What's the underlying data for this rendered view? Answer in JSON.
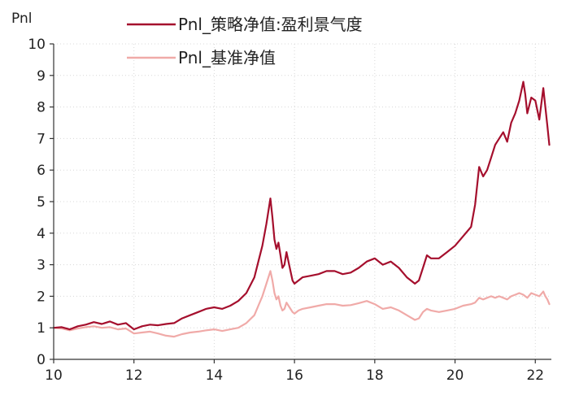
{
  "chart_data": {
    "type": "line",
    "ylabel": "Pnl",
    "xlabel": "",
    "xlim": [
      10,
      22.4
    ],
    "ylim": [
      0,
      10
    ],
    "x_ticks": [
      "10",
      "12",
      "14",
      "16",
      "18",
      "20",
      "22"
    ],
    "y_ticks": [
      "0",
      "1",
      "2",
      "3",
      "4",
      "5",
      "6",
      "7",
      "8",
      "9",
      "10"
    ],
    "grid": "dotted",
    "legend_position": "top-center",
    "series": [
      {
        "name": "Pnl_策略净值:盈利景气度",
        "color": "#a50f2d",
        "x": [
          10.0,
          10.2,
          10.4,
          10.6,
          10.8,
          11.0,
          11.2,
          11.4,
          11.6,
          11.8,
          12.0,
          12.2,
          12.4,
          12.6,
          12.8,
          13.0,
          13.2,
          13.4,
          13.6,
          13.8,
          14.0,
          14.2,
          14.4,
          14.6,
          14.8,
          15.0,
          15.1,
          15.2,
          15.3,
          15.4,
          15.45,
          15.5,
          15.55,
          15.6,
          15.65,
          15.7,
          15.75,
          15.8,
          15.85,
          15.9,
          15.95,
          16.0,
          16.1,
          16.2,
          16.4,
          16.6,
          16.8,
          17.0,
          17.2,
          17.4,
          17.6,
          17.8,
          18.0,
          18.2,
          18.4,
          18.6,
          18.8,
          19.0,
          19.1,
          19.2,
          19.3,
          19.4,
          19.6,
          19.8,
          20.0,
          20.2,
          20.4,
          20.5,
          20.6,
          20.7,
          20.8,
          20.9,
          21.0,
          21.1,
          21.2,
          21.3,
          21.4,
          21.5,
          21.6,
          21.7,
          21.75,
          21.8,
          21.9,
          22.0,
          22.1,
          22.2,
          22.25,
          22.3,
          22.35
        ],
        "values": [
          1.0,
          1.02,
          0.95,
          1.05,
          1.1,
          1.18,
          1.12,
          1.2,
          1.1,
          1.15,
          0.95,
          1.05,
          1.1,
          1.08,
          1.12,
          1.15,
          1.3,
          1.4,
          1.5,
          1.6,
          1.65,
          1.6,
          1.7,
          1.85,
          2.1,
          2.6,
          3.1,
          3.6,
          4.3,
          5.1,
          4.5,
          3.8,
          3.5,
          3.7,
          3.3,
          2.9,
          3.0,
          3.4,
          3.1,
          2.8,
          2.5,
          2.4,
          2.5,
          2.6,
          2.65,
          2.7,
          2.8,
          2.8,
          2.7,
          2.75,
          2.9,
          3.1,
          3.2,
          3.0,
          3.1,
          2.9,
          2.6,
          2.4,
          2.5,
          2.9,
          3.3,
          3.2,
          3.2,
          3.4,
          3.6,
          3.9,
          4.2,
          4.9,
          6.1,
          5.8,
          6.0,
          6.4,
          6.8,
          7.0,
          7.2,
          6.9,
          7.5,
          7.8,
          8.2,
          8.8,
          8.4,
          7.8,
          8.3,
          8.2,
          7.6,
          8.6,
          8.0,
          7.4,
          6.8
        ]
      },
      {
        "name": "Pnl_基准净值",
        "color": "#f0aaa8",
        "x": [
          10.0,
          10.2,
          10.4,
          10.6,
          10.8,
          11.0,
          11.2,
          11.4,
          11.6,
          11.8,
          12.0,
          12.2,
          12.4,
          12.6,
          12.8,
          13.0,
          13.2,
          13.4,
          13.6,
          13.8,
          14.0,
          14.2,
          14.4,
          14.6,
          14.8,
          15.0,
          15.1,
          15.2,
          15.3,
          15.4,
          15.45,
          15.5,
          15.55,
          15.6,
          15.65,
          15.7,
          15.75,
          15.8,
          15.85,
          15.9,
          15.95,
          16.0,
          16.1,
          16.2,
          16.4,
          16.6,
          16.8,
          17.0,
          17.2,
          17.4,
          17.6,
          17.8,
          18.0,
          18.2,
          18.4,
          18.6,
          18.8,
          19.0,
          19.1,
          19.2,
          19.3,
          19.4,
          19.6,
          19.8,
          20.0,
          20.2,
          20.4,
          20.5,
          20.6,
          20.7,
          20.8,
          20.9,
          21.0,
          21.1,
          21.2,
          21.3,
          21.4,
          21.5,
          21.6,
          21.7,
          21.75,
          21.8,
          21.9,
          22.0,
          22.1,
          22.2,
          22.25,
          22.3,
          22.35
        ],
        "values": [
          1.0,
          0.98,
          0.92,
          0.98,
          1.02,
          1.05,
          1.0,
          1.02,
          0.95,
          0.98,
          0.82,
          0.85,
          0.88,
          0.82,
          0.75,
          0.72,
          0.8,
          0.85,
          0.88,
          0.92,
          0.95,
          0.9,
          0.95,
          1.0,
          1.15,
          1.4,
          1.7,
          2.0,
          2.4,
          2.8,
          2.5,
          2.1,
          1.9,
          2.0,
          1.7,
          1.55,
          1.6,
          1.8,
          1.7,
          1.6,
          1.5,
          1.45,
          1.55,
          1.6,
          1.65,
          1.7,
          1.75,
          1.75,
          1.7,
          1.72,
          1.78,
          1.85,
          1.75,
          1.6,
          1.65,
          1.55,
          1.4,
          1.25,
          1.3,
          1.5,
          1.6,
          1.55,
          1.5,
          1.55,
          1.6,
          1.7,
          1.75,
          1.8,
          1.95,
          1.9,
          1.95,
          2.0,
          1.95,
          2.0,
          1.95,
          1.9,
          2.0,
          2.05,
          2.1,
          2.05,
          2.0,
          1.95,
          2.1,
          2.05,
          2.0,
          2.15,
          2.0,
          1.9,
          1.75
        ]
      }
    ]
  }
}
